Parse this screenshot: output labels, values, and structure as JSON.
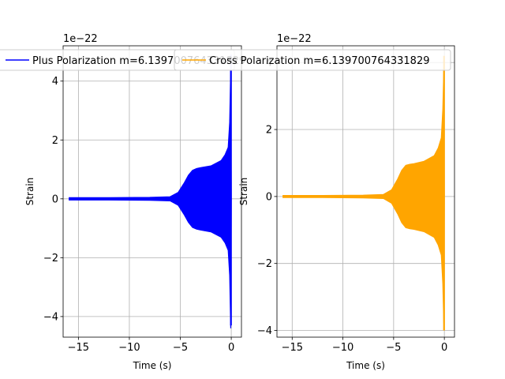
{
  "chart_data": [
    {
      "type": "line",
      "xlabel": "Time (s)",
      "ylabel": "Strain",
      "offset_label": "1e−22",
      "xlim": [
        -16.5,
        1.0
      ],
      "ylim": [
        -4.7,
        5.2
      ],
      "xticks": [
        -15,
        -10,
        -5,
        0
      ],
      "xtick_labels": [
        "−15",
        "−10",
        "−5",
        "0"
      ],
      "yticks": [
        -4,
        -2,
        0,
        2,
        4
      ],
      "ytick_labels": [
        "−4",
        "−2",
        "0",
        "2",
        "4"
      ],
      "grid": true,
      "legend_loc": "upper center",
      "series": [
        {
          "name": "Plus Polarization m=6.139700764331829",
          "color": "#0000ff",
          "x": [
            -15.9,
            -12.0,
            -8.0,
            -6.0,
            -5.2,
            -4.6,
            -4.2,
            -3.8,
            -3.4,
            -3.0,
            -2.0,
            -1.0,
            -0.6,
            -0.3,
            -0.15,
            -0.05,
            0.0
          ],
          "envelope": [
            0.04,
            0.04,
            0.05,
            0.07,
            0.22,
            0.55,
            0.8,
            0.97,
            1.03,
            1.06,
            1.12,
            1.3,
            1.5,
            1.75,
            2.6,
            4.4,
            0.0
          ],
          "lower_tip": -4.3,
          "upper_tip": 4.9
        }
      ]
    },
    {
      "type": "line",
      "xlabel": "Time (s)",
      "ylabel": "Strain",
      "offset_label": "1e−22",
      "xlim": [
        -16.5,
        1.0
      ],
      "ylim": [
        -4.2,
        4.5
      ],
      "xticks": [
        -15,
        -10,
        -5,
        0
      ],
      "xtick_labels": [
        "−15",
        "−10",
        "−5",
        "0"
      ],
      "yticks": [
        -4,
        -2,
        0,
        2,
        4
      ],
      "ytick_labels": [
        "−4",
        "−2",
        "0",
        "2",
        "4"
      ],
      "grid": true,
      "legend_loc": "upper center",
      "series": [
        {
          "name": "Cross Polarization m=6.139700764331829",
          "color": "#ffa500",
          "x": [
            -15.9,
            -12.0,
            -8.0,
            -6.0,
            -5.2,
            -4.6,
            -4.2,
            -3.8,
            -3.4,
            -3.0,
            -2.0,
            -1.0,
            -0.6,
            -0.3,
            -0.15,
            -0.05,
            0.0
          ],
          "envelope": [
            0.03,
            0.03,
            0.04,
            0.06,
            0.2,
            0.52,
            0.78,
            0.93,
            0.96,
            0.98,
            1.05,
            1.22,
            1.45,
            1.75,
            2.6,
            3.8,
            0.0
          ],
          "lower_tip": -4.0,
          "upper_tip": 4.2
        }
      ]
    }
  ]
}
